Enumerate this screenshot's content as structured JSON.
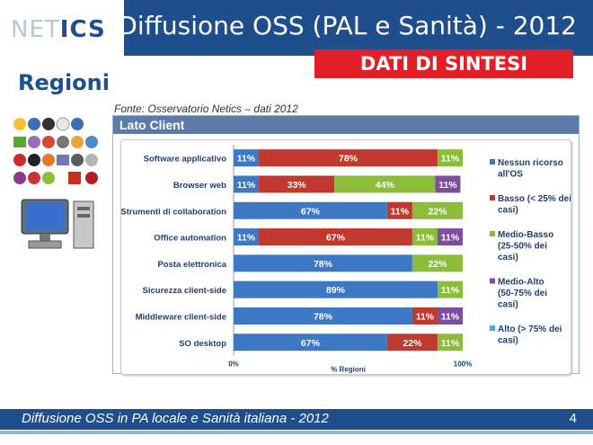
{
  "header": {
    "logo_light": "NET",
    "logo_bold": "ICS",
    "title": "Diffusione OSS (PAL e Sanità) - 2012",
    "badge": "DATI DI SINTESI",
    "section": "Regioni"
  },
  "source": "Fonte: Osservatorio Netics – dati 2012",
  "panel": {
    "title": "Lato Client"
  },
  "colors": {
    "brand": "#1f4e8c",
    "accent_red": "#e21e26"
  },
  "chart_data": {
    "type": "bar",
    "orientation": "horizontal",
    "stacked": "percent",
    "categories": [
      "Software applicativo",
      "Browser web",
      "Strumenti di collaboration",
      "Office automation",
      "Posta elettronica",
      "Sicurezza client-side",
      "Middleware client-side",
      "SO desktop"
    ],
    "series": [
      {
        "name": "Nessun ricorso all'OS",
        "color": "#3c78c3",
        "values": [
          11,
          11,
          67,
          11,
          78,
          89,
          78,
          67
        ],
        "labels": [
          "11%",
          "11%",
          "67%",
          "11%",
          "78%",
          "89%",
          "78%",
          "67%"
        ]
      },
      {
        "name": "Basso (< 25% dei casi)",
        "color": "#c0392f",
        "values": [
          78,
          33,
          11,
          67,
          0,
          0,
          11,
          22
        ],
        "labels": [
          "78%",
          "33%",
          "11%",
          "67%",
          "",
          "",
          "11%",
          "22%"
        ]
      },
      {
        "name": "Medio-Basso (25-50% dei casi)",
        "color": "#8bbd3a",
        "values": [
          11,
          44,
          22,
          11,
          22,
          11,
          0,
          11
        ],
        "labels": [
          "11%",
          "44%",
          "22%",
          "11%",
          "22%",
          "11%",
          "",
          "11%"
        ]
      },
      {
        "name": "Medio-Alto (50-75% dei casi)",
        "color": "#7d4e9e",
        "values": [
          0,
          11,
          0,
          11,
          0,
          0,
          11,
          0
        ],
        "labels": [
          "",
          "11%",
          "",
          "11%",
          "",
          "",
          "11%",
          ""
        ]
      },
      {
        "name": "Alto (> 75% dei casi)",
        "color": "#3fb4cf",
        "values": [
          0,
          0,
          0,
          0,
          0,
          0,
          0,
          0
        ],
        "labels": [
          "",
          "",
          "",
          "",
          "",
          "",
          "",
          ""
        ]
      }
    ],
    "xlabel": "% Regioni",
    "xticks": [
      "0%",
      "100%"
    ],
    "xlim": [
      0,
      100
    ],
    "legend_position": "right",
    "grid": false
  },
  "footer": {
    "text": "Diffusione OSS in PA locale e Sanità italiana - 2012",
    "page": "4"
  }
}
